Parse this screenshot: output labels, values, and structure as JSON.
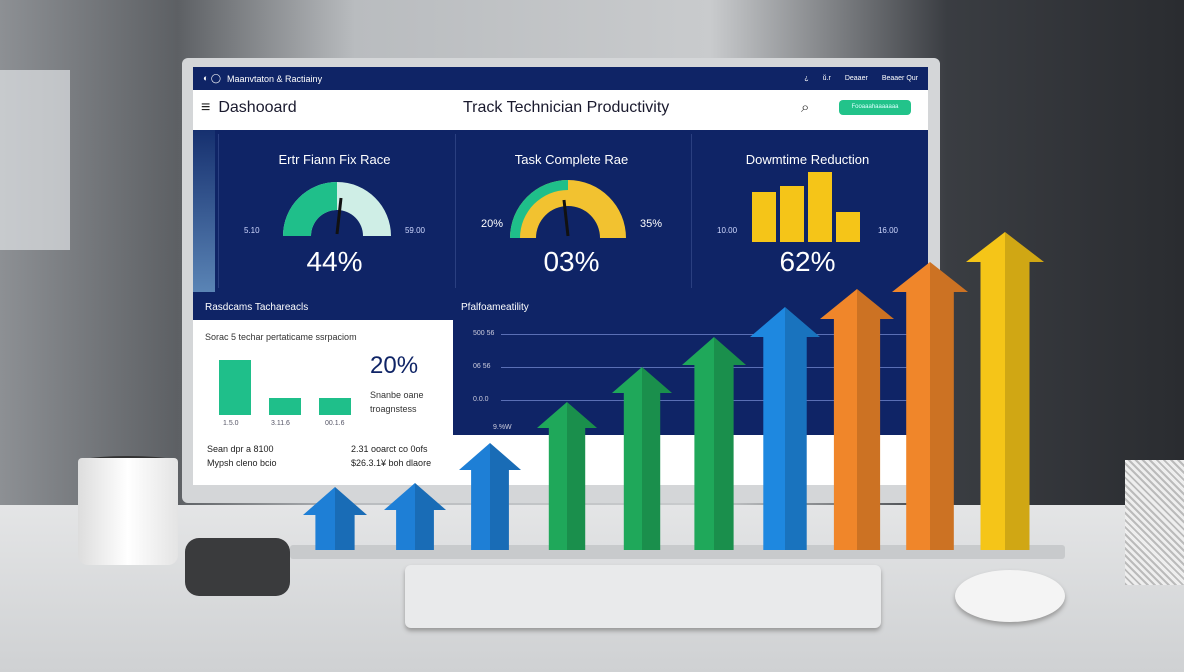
{
  "topbar": {
    "title": "Maanvtaton & Ractiainy",
    "right_items": [
      "¿",
      "ŭ.r",
      "Deaaer",
      "Beaaer Qur"
    ]
  },
  "header": {
    "menu_icon": "hamburger-icon",
    "title": "Dashooard",
    "center_title": "Track Technician Productivity",
    "search_icon": "search-icon",
    "button_label": "Fooaaahaaaaaaa"
  },
  "kpis": [
    {
      "title": "Ertr Fiann Fix Race",
      "value": "44%",
      "left_label": "5.10",
      "right_label": "59.00"
    },
    {
      "title": "Task Complete Rae",
      "value": "03%",
      "left_label": "20%",
      "right_label": "35%"
    },
    {
      "title": "Dowmtime Reduction",
      "value": "62%",
      "left_label": "10.00",
      "right_label": "16.00"
    }
  ],
  "row2": {
    "left_title": "Rasdcams Tachareacls",
    "right_title": "Pfalfoameatility"
  },
  "left_panel": {
    "subtitle": "Sorac 5 techar pertaticame ssrpaciom",
    "big_value": "20%",
    "desc_line1": "Snanbe oane",
    "desc_line2": "troagnstess",
    "bar_labels": [
      "1.5.0",
      "3.11.6",
      "00.1.6"
    ],
    "footer": [
      [
        "Sean dpr a 8100",
        "2.31 ooarct co 0ofs"
      ],
      [
        "Mypsh cleno bcio",
        "$26.3.1¥ boh dlaore"
      ]
    ]
  },
  "chart_panel": {
    "y_labels": [
      "500 56",
      "06 56",
      "0.0.0",
      "9.%W"
    ]
  },
  "arrows": {
    "colors": [
      "#1e7fd6",
      "#1e7fd6",
      "#1e7fd6",
      "#1fa85a",
      "#1fa85a",
      "#1fa85a",
      "#1e88e0",
      "#f0862a",
      "#f0862a",
      "#f5c518"
    ]
  },
  "colors": {
    "navy": "#0f2466",
    "green": "#22c38a",
    "gauge_yellow": "#f2c230"
  }
}
